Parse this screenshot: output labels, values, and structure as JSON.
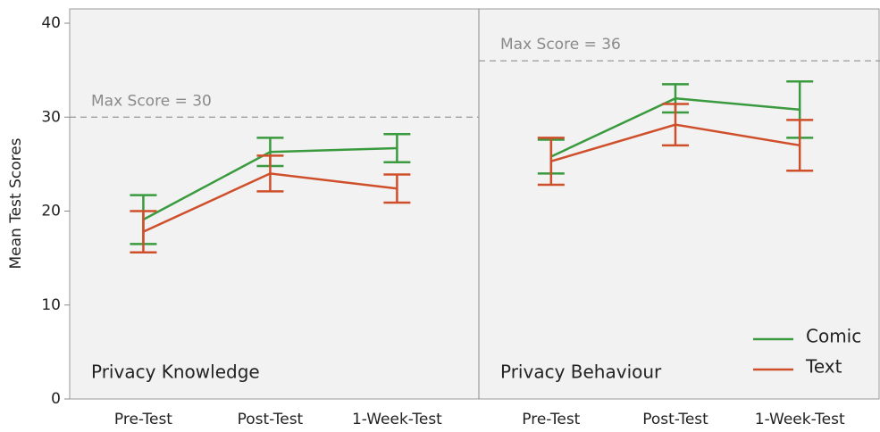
{
  "chart_data": {
    "type": "line",
    "ylabel": "Mean Test Scores",
    "ylim": [
      0,
      40
    ],
    "yticks": [
      0,
      10,
      20,
      30,
      40
    ],
    "legend_position": "lower right",
    "legend": [
      {
        "name": "Comic",
        "color": "#3a9a3e"
      },
      {
        "name": "Text",
        "color": "#cf4f2b"
      }
    ],
    "panels": [
      {
        "title": "Privacy Knowledge",
        "categories": [
          "Pre-Test",
          "Post-Test",
          "1-Week-Test"
        ],
        "max_line": {
          "value": 30,
          "label": "Max Score = 30"
        },
        "series": [
          {
            "values": [
              19.1,
              26.3,
              26.7
            ],
            "errors": [
              2.6,
              1.5,
              1.5
            ]
          },
          {
            "values": [
              17.8,
              24.0,
              22.4
            ],
            "errors": [
              2.2,
              1.9,
              1.5
            ]
          }
        ]
      },
      {
        "title": "Privacy Behaviour",
        "categories": [
          "Pre-Test",
          "Post-Test",
          "1-Week-Test"
        ],
        "max_line": {
          "value": 36,
          "label": "Max Score = 36"
        },
        "series": [
          {
            "values": [
              25.8,
              32.0,
              30.8
            ],
            "errors": [
              1.8,
              1.5,
              3.0
            ]
          },
          {
            "values": [
              25.3,
              29.2,
              27.0
            ],
            "errors": [
              2.5,
              2.2,
              2.7
            ]
          }
        ]
      }
    ]
  }
}
